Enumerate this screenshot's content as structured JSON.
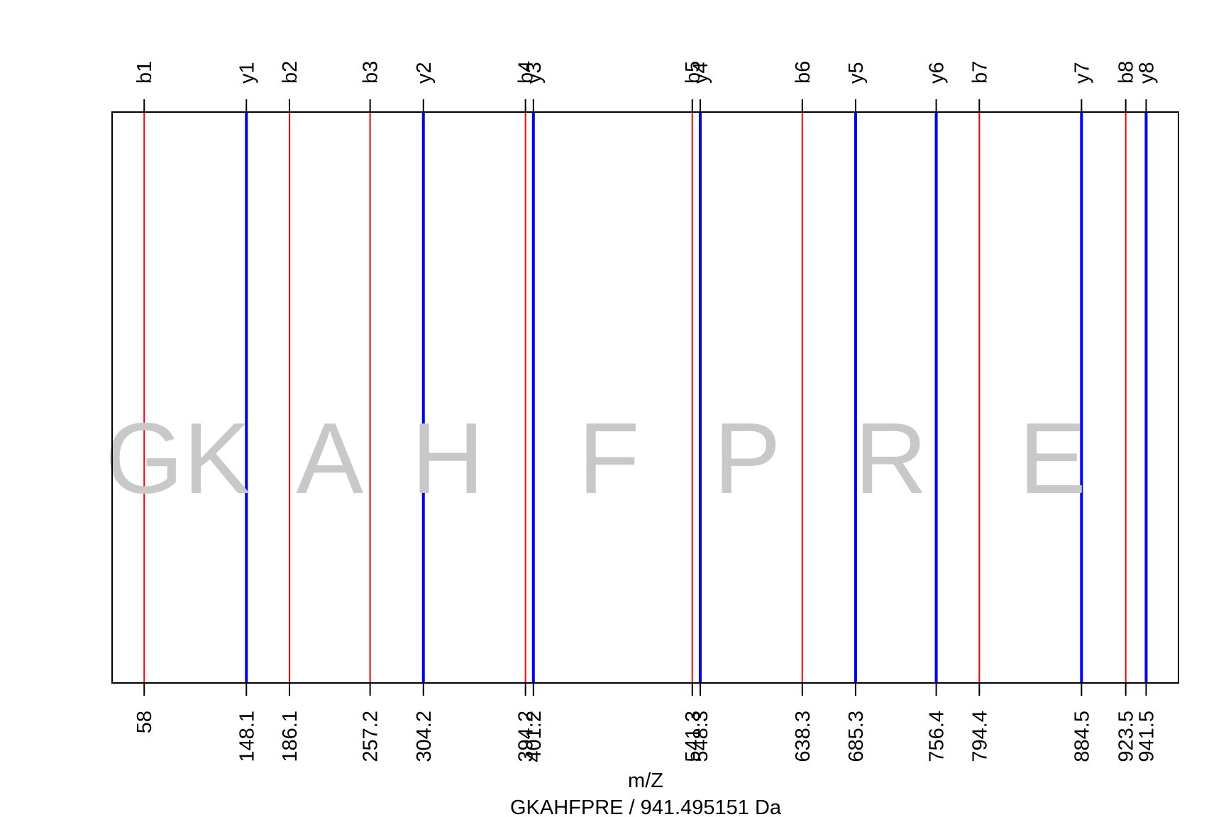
{
  "chart_data": {
    "type": "bar",
    "title": "GKAHFPRE / 941.495151 Da",
    "xlabel": "m/Z",
    "ylabel": "",
    "xlim": [
      29.7,
      970
    ],
    "peptide": [
      "G",
      "K",
      "A",
      "H",
      "F",
      "P",
      "R",
      "E"
    ],
    "series": [
      {
        "name": "b",
        "color": "#ff0000",
        "labels": [
          "b1",
          "b2",
          "b3",
          "b4",
          "b5",
          "b6",
          "b7",
          "b8"
        ],
        "x": [
          58.0,
          186.1,
          257.2,
          394.2,
          541.3,
          638.3,
          794.4,
          923.5
        ],
        "tick_labels": [
          "58",
          "186.1",
          "257.2",
          "394.2",
          "541.3",
          "638.3",
          "794.4",
          "923.5"
        ]
      },
      {
        "name": "y",
        "color": "#0000ff",
        "labels": [
          "y1",
          "y2",
          "y3",
          "y4",
          "y5",
          "y6",
          "y7",
          "y8"
        ],
        "x": [
          148.1,
          304.2,
          401.2,
          548.3,
          685.3,
          756.4,
          884.5,
          941.5
        ],
        "tick_labels": [
          "148.1",
          "304.2",
          "401.2",
          "548.3",
          "685.3",
          "756.4",
          "884.5",
          "941.5"
        ]
      }
    ],
    "residue_color": "#c8c8c8",
    "grid": false,
    "legend": "none"
  }
}
